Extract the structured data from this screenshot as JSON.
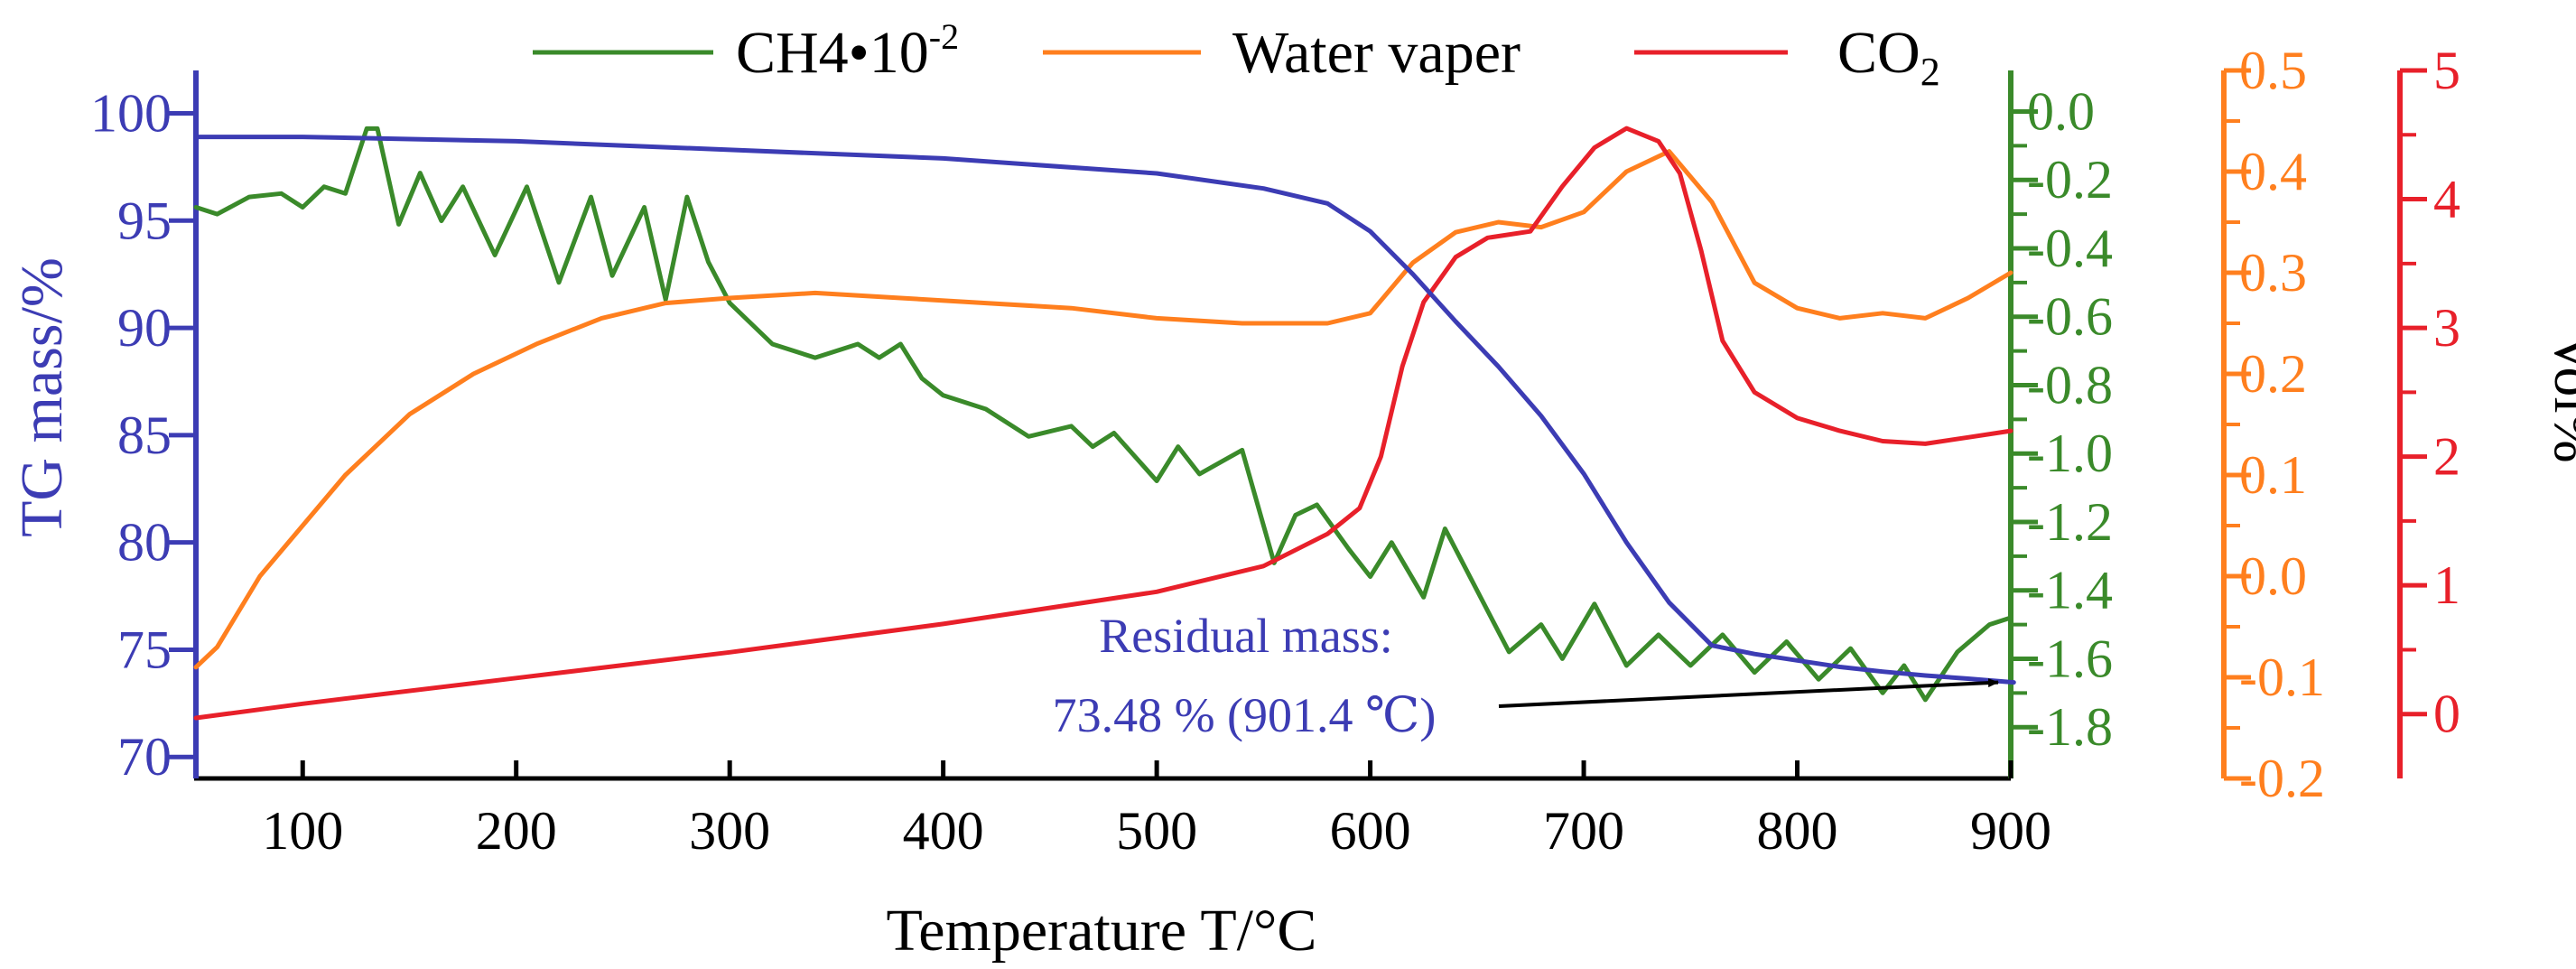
{
  "chart_data": {
    "type": "line",
    "xlabel": "Temperature  T/°C",
    "xlim": [
      50,
      900
    ],
    "x_ticks": [
      100,
      200,
      300,
      400,
      500,
      600,
      700,
      800,
      900
    ],
    "axes": {
      "tg": {
        "label": "TG  mass/%",
        "color": "#3c3cb4",
        "ylim": [
          69,
          102
        ],
        "ticks": [
          70,
          75,
          80,
          85,
          90,
          95,
          100
        ]
      },
      "ch4": {
        "label": "",
        "color": "#3a8a2a",
        "ylim": [
          -1.95,
          0.12
        ],
        "ticks": [
          0.0,
          -0.2,
          -0.4,
          -0.6,
          -0.8,
          -1.0,
          -1.2,
          -1.4,
          -1.6,
          -1.8
        ],
        "tick_labels": [
          "0.0",
          "-0.2",
          "-0.4",
          "-0.6",
          "-0.8",
          "-1.0",
          "-1.2",
          "-1.4",
          "-1.6",
          "-1.8"
        ]
      },
      "water": {
        "label": "",
        "color": "#ff7f1e",
        "ylim": [
          -0.2,
          0.5
        ],
        "ticks": [
          -0.2,
          -0.1,
          0.0,
          0.1,
          0.2,
          0.3,
          0.4,
          0.5
        ],
        "tick_labels": [
          "-0.2",
          "-0.1",
          "0.0",
          "0.1",
          "0.2",
          "0.3",
          "0.4",
          "0.5"
        ]
      },
      "vol": {
        "label": "Vol%",
        "color": "#e8202a",
        "ylim": [
          -0.5,
          5
        ],
        "ticks": [
          0,
          1,
          2,
          3,
          4,
          5
        ],
        "tick_labels": [
          "0",
          "1",
          "2",
          "3",
          "4",
          "5"
        ]
      }
    },
    "series": [
      {
        "name": "CH4•10",
        "name_sup": "-2",
        "axis": "ch4",
        "color": "#3a8a2a",
        "x": [
          50,
          60,
          75,
          90,
          100,
          110,
          120,
          130,
          135,
          145,
          155,
          165,
          175,
          190,
          205,
          220,
          235,
          245,
          260,
          270,
          280,
          290,
          300,
          320,
          340,
          360,
          370,
          380,
          390,
          400,
          420,
          440,
          460,
          470,
          480,
          500,
          510,
          520,
          540,
          555,
          565,
          575,
          590,
          600,
          610,
          625,
          635,
          655,
          665,
          680,
          690,
          705,
          720,
          735,
          750,
          765,
          780,
          795,
          810,
          825,
          840,
          850,
          860,
          875,
          890,
          900
        ],
        "values": [
          -0.28,
          -0.3,
          -0.25,
          -0.24,
          -0.28,
          -0.22,
          -0.24,
          -0.05,
          -0.05,
          -0.33,
          -0.18,
          -0.32,
          -0.22,
          -0.42,
          -0.22,
          -0.5,
          -0.25,
          -0.48,
          -0.28,
          -0.55,
          -0.25,
          -0.44,
          -0.56,
          -0.68,
          -0.72,
          -0.68,
          -0.72,
          -0.68,
          -0.78,
          -0.83,
          -0.87,
          -0.95,
          -0.92,
          -0.98,
          -0.94,
          -1.08,
          -0.98,
          -1.06,
          -0.99,
          -1.32,
          -1.18,
          -1.15,
          -1.28,
          -1.36,
          -1.26,
          -1.42,
          -1.22,
          -1.46,
          -1.58,
          -1.5,
          -1.6,
          -1.44,
          -1.62,
          -1.53,
          -1.62,
          -1.53,
          -1.64,
          -1.55,
          -1.66,
          -1.57,
          -1.7,
          -1.62,
          -1.72,
          -1.58,
          -1.5,
          -1.48
        ]
      },
      {
        "name": "Water vaper",
        "axis": "water",
        "color": "#ff7f1e",
        "x": [
          50,
          60,
          80,
          100,
          120,
          150,
          180,
          210,
          240,
          270,
          300,
          340,
          380,
          420,
          460,
          500,
          540,
          580,
          600,
          620,
          640,
          660,
          680,
          700,
          720,
          740,
          760,
          780,
          800,
          820,
          840,
          860,
          880,
          900
        ],
        "values": [
          -0.09,
          -0.07,
          0.0,
          0.05,
          0.1,
          0.16,
          0.2,
          0.23,
          0.255,
          0.27,
          0.275,
          0.28,
          0.275,
          0.27,
          0.265,
          0.255,
          0.25,
          0.25,
          0.26,
          0.31,
          0.34,
          0.35,
          0.345,
          0.36,
          0.4,
          0.42,
          0.37,
          0.29,
          0.265,
          0.255,
          0.26,
          0.255,
          0.275,
          0.3
        ]
      },
      {
        "name": "CO",
        "name_sub": "2",
        "axis": "vol",
        "color": "#e8202a",
        "x": [
          50,
          100,
          200,
          300,
          400,
          500,
          550,
          580,
          595,
          605,
          615,
          625,
          640,
          655,
          675,
          690,
          705,
          720,
          735,
          745,
          755,
          765,
          780,
          800,
          820,
          840,
          860,
          880,
          900
        ],
        "values": [
          -0.03,
          0.08,
          0.28,
          0.48,
          0.7,
          0.95,
          1.15,
          1.4,
          1.6,
          2.0,
          2.7,
          3.2,
          3.55,
          3.7,
          3.75,
          4.1,
          4.4,
          4.55,
          4.45,
          4.2,
          3.6,
          2.9,
          2.5,
          2.3,
          2.2,
          2.12,
          2.1,
          2.15,
          2.2
        ]
      },
      {
        "name": "TG",
        "axis": "tg",
        "color": "#3c3cb4",
        "x": [
          50,
          100,
          200,
          300,
          400,
          500,
          550,
          580,
          600,
          620,
          640,
          660,
          680,
          700,
          720,
          740,
          760,
          780,
          800,
          820,
          840,
          860,
          880,
          901.4
        ],
        "values": [
          98.9,
          98.9,
          98.7,
          98.3,
          97.9,
          97.2,
          96.5,
          95.8,
          94.5,
          92.5,
          90.3,
          88.2,
          85.9,
          83.2,
          80.0,
          77.2,
          75.2,
          74.8,
          74.5,
          74.2,
          73.98,
          73.8,
          73.65,
          73.48
        ]
      }
    ],
    "legend": [
      "CH4•10⁻²",
      "Water vaper",
      "CO₂"
    ],
    "annotation": {
      "line1": "Residual mass:",
      "line2": "73.48 % (901.4 ℃)",
      "target_x": 901.4,
      "target_tg": 73.48
    }
  }
}
